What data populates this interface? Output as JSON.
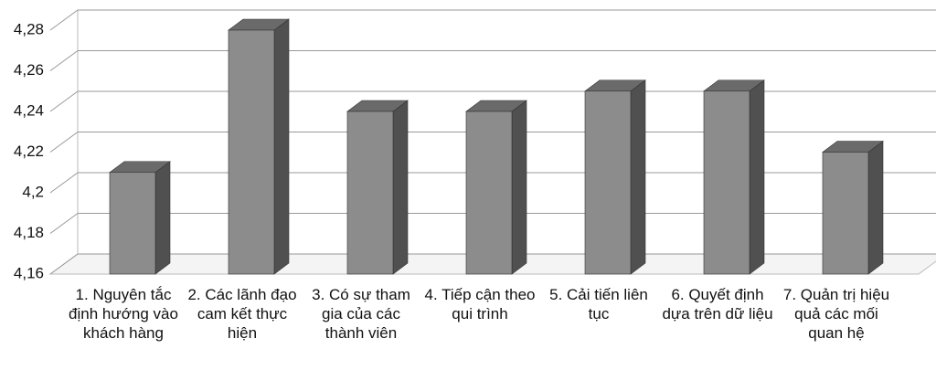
{
  "chart_data": {
    "type": "bar3d",
    "categories": [
      "1. Nguyên tắc định hướng vào khách hàng",
      "2. Các lãnh đạo cam kết thực hiện",
      "3. Có sự tham gia của các thành viên",
      "4. Tiếp cận theo qui trình",
      "5. Cải tiến liên tục",
      "6. Quyết định dựa trên dữ liệu",
      "7. Quản trị hiệu quả các mối quan hệ"
    ],
    "values": [
      4.21,
      4.28,
      4.24,
      4.24,
      4.25,
      4.25,
      4.22
    ],
    "color": "#8c8c8c",
    "ylim": [
      4.16,
      4.28
    ],
    "yticks": [
      {
        "value": 4.16,
        "label": "4,16"
      },
      {
        "value": 4.18,
        "label": "4,18"
      },
      {
        "value": 4.2,
        "label": "4,2"
      },
      {
        "value": 4.22,
        "label": "4,22"
      },
      {
        "value": 4.24,
        "label": "4,24"
      },
      {
        "value": 4.26,
        "label": "4,26"
      },
      {
        "value": 4.28,
        "label": "4,28"
      }
    ],
    "grid": true
  }
}
